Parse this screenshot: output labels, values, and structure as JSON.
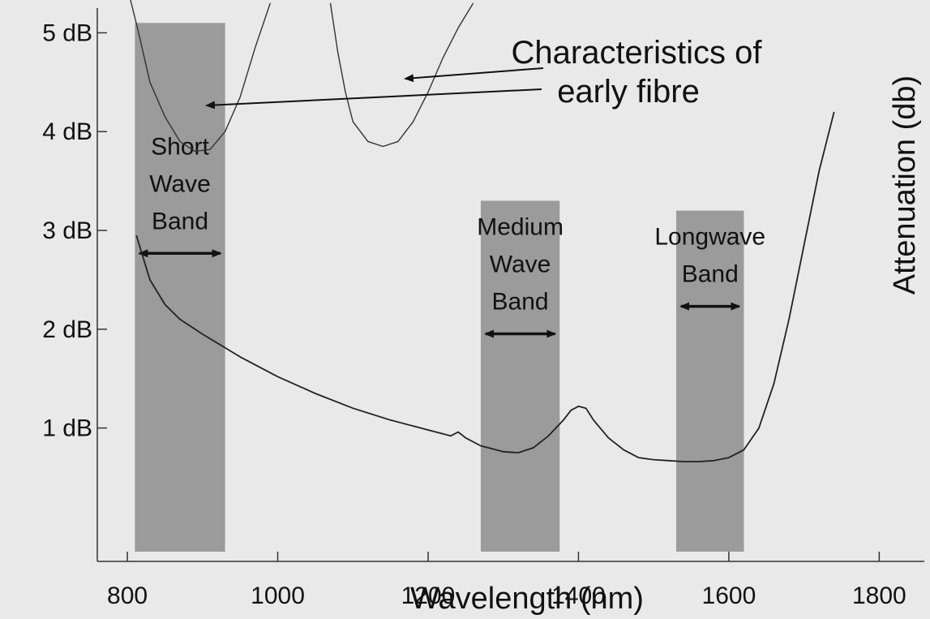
{
  "chart_data": {
    "type": "line",
    "title": "",
    "xlabel": "Wavelength (nm)",
    "ylabel": "Attenuation (db)",
    "xlim": [
      760,
      1860
    ],
    "ylim": [
      -0.35,
      5.25
    ],
    "x_ticks": [
      800,
      1000,
      1200,
      1400,
      1600,
      1800
    ],
    "y_ticks": [
      {
        "value": 1,
        "label": "1 dB"
      },
      {
        "value": 2,
        "label": "2 dB"
      },
      {
        "value": 3,
        "label": "3 dB"
      },
      {
        "value": 4,
        "label": "4 dB"
      },
      {
        "value": 5,
        "label": "5 dB"
      }
    ],
    "grid": false,
    "bands": [
      {
        "lines": [
          "Short",
          "Wave",
          "Band"
        ],
        "x_start": 810,
        "x_end": 930,
        "y_top": 5.1,
        "color": "#9b9b9b"
      },
      {
        "lines": [
          "Medium",
          "Wave",
          "Band"
        ],
        "x_start": 1270,
        "x_end": 1375,
        "y_top": 3.3,
        "color": "#9b9b9b"
      },
      {
        "lines": [
          "Longwave",
          "Band"
        ],
        "x_start": 1530,
        "x_end": 1620,
        "y_top": 3.2,
        "color": "#9b9b9b"
      }
    ],
    "annotation": {
      "lines": [
        "Characteristics of",
        "early fibre"
      ]
    },
    "series": [
      {
        "name": "",
        "color": "#222222",
        "x": [
          812,
          830,
          850,
          870,
          900,
          950,
          1000,
          1050,
          1100,
          1150,
          1200,
          1230,
          1240,
          1250,
          1270,
          1300,
          1320,
          1340,
          1360,
          1380,
          1390,
          1400,
          1410,
          1420,
          1440,
          1460,
          1480,
          1500,
          1520,
          1540,
          1560,
          1580,
          1600,
          1620,
          1640,
          1660,
          1680,
          1700,
          1720,
          1740
        ],
        "y": [
          2.95,
          2.5,
          2.25,
          2.1,
          1.95,
          1.72,
          1.52,
          1.35,
          1.2,
          1.08,
          0.98,
          0.92,
          0.96,
          0.9,
          0.82,
          0.76,
          0.75,
          0.8,
          0.92,
          1.08,
          1.18,
          1.22,
          1.2,
          1.08,
          0.9,
          0.78,
          0.7,
          0.68,
          0.67,
          0.66,
          0.66,
          0.67,
          0.7,
          0.78,
          1.0,
          1.45,
          2.1,
          2.85,
          3.6,
          4.2
        ]
      },
      {
        "name": "",
        "color": "#333333",
        "x": [
          802,
          815,
          830,
          850,
          870,
          890,
          910,
          930,
          950,
          970,
          990
        ],
        "y": [
          5.4,
          5.0,
          4.5,
          4.15,
          3.9,
          3.8,
          3.82,
          4.0,
          4.35,
          4.85,
          5.3
        ],
        "ends_at_annotation": false
      },
      {
        "name": "",
        "color": "#333333",
        "x": [
          1070,
          1080,
          1090,
          1100,
          1120,
          1140,
          1160,
          1180,
          1200,
          1220,
          1240,
          1260
        ],
        "y": [
          5.3,
          4.8,
          4.4,
          4.1,
          3.9,
          3.85,
          3.9,
          4.1,
          4.4,
          4.75,
          5.05,
          5.3
        ]
      }
    ]
  }
}
